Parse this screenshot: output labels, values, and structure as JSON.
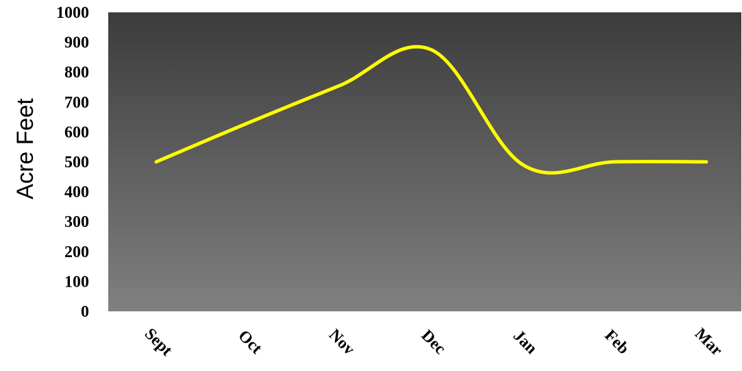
{
  "chart_data": {
    "type": "line",
    "ylabel": "Acre Feet",
    "xlabel": "",
    "title": "",
    "categories": [
      "Sept",
      "Oct",
      "Nov",
      "Dec",
      "Jan",
      "Feb",
      "Mar"
    ],
    "series": [
      {
        "values": [
          500,
          630,
          755,
          875,
          490,
          500,
          500
        ]
      }
    ],
    "ylim": [
      0,
      1000
    ],
    "yticks": [
      0,
      100,
      200,
      300,
      400,
      500,
      600,
      700,
      800,
      900,
      1000
    ],
    "line_color": "#ffff00",
    "plot_gradient": [
      "#3c3c3c",
      "#808080"
    ],
    "grid": false,
    "legend": "none"
  }
}
